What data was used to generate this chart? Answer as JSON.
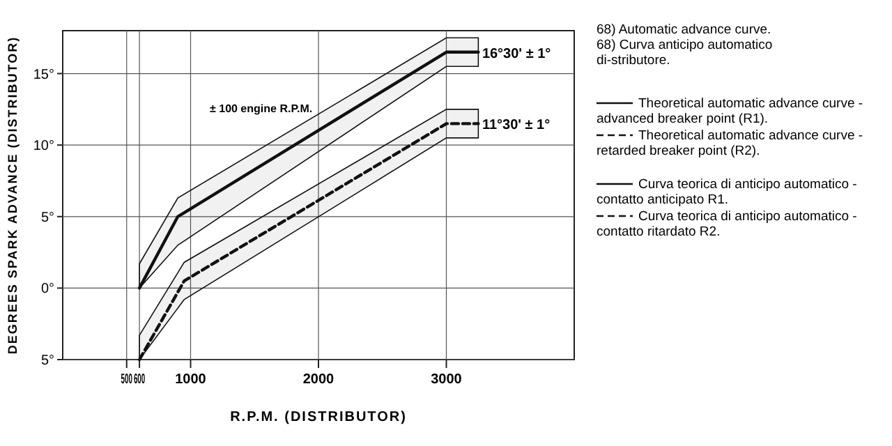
{
  "chart_data": {
    "type": "line",
    "title": "68) Automatic advance curve.",
    "subtitle": "68) Curva anticipo automatico di-stributore.",
    "xlabel": "R.P.M. (DISTRIBUTOR)",
    "ylabel": "DEGREES SPARK ADVANCE (DISTRIBUTOR)",
    "xlim": [
      0,
      4000
    ],
    "ylim": [
      -5,
      18
    ],
    "xticks": [
      500,
      600,
      1000,
      2000,
      3000
    ],
    "yticks": [
      {
        "value": -5,
        "label": "5°"
      },
      {
        "value": 0,
        "label": "0°"
      },
      {
        "value": 5,
        "label": "5°"
      },
      {
        "value": 10,
        "label": "10°"
      },
      {
        "value": 15,
        "label": "15°"
      }
    ],
    "grid": true,
    "legend": "right",
    "series": [
      {
        "name": "Theoretical automatic advance curve - advanced breaker point (R1).",
        "color": "#111111",
        "line_style": "solid",
        "x": [
          600,
          900,
          3000,
          3250
        ],
        "values": [
          0,
          5,
          16.5,
          16.5
        ],
        "lower": [
          0,
          3,
          15.5,
          15.5
        ],
        "upper": [
          1.7,
          6.3,
          17.5,
          17.5
        ]
      },
      {
        "name": "Theoretical automatic advance curve - retarded breaker point (R2).",
        "color": "#111111",
        "line_style": "dashed",
        "x": [
          600,
          950,
          3000,
          3250
        ],
        "values": [
          -5,
          0.5,
          11.5,
          11.5
        ],
        "lower": [
          -5,
          -0.8,
          10.5,
          10.5
        ],
        "upper": [
          -3.3,
          1.8,
          12.5,
          12.5
        ]
      }
    ],
    "annotations": [
      "± 100 engine R.P.M.",
      "Curva teorica di anticipo automatico - contatto anticipato R1.",
      "Curva teorica di anticipo automatico - contatto ritardato R2.",
      {
        "text": "16°30' ± 1°",
        "x": 3280,
        "y": 16.5
      },
      {
        "text": "11°30' ± 1°",
        "x": 3280,
        "y": 11.5
      }
    ]
  }
}
